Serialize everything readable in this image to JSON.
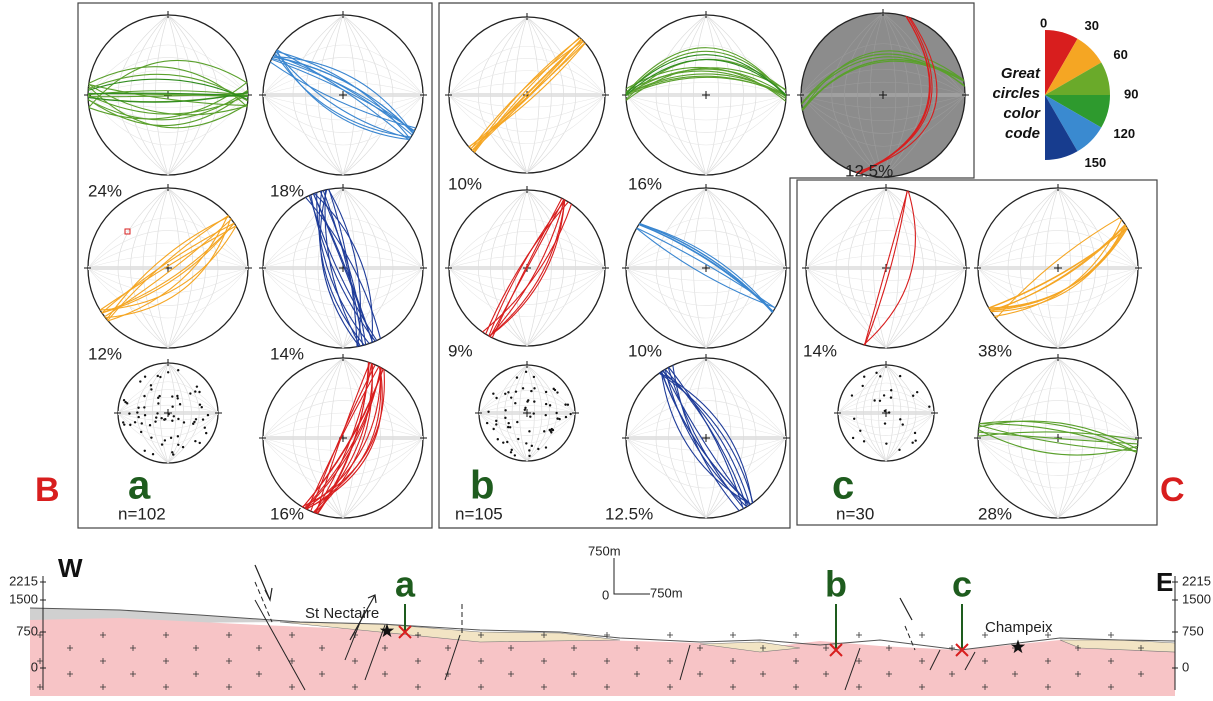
{
  "panels": [
    {
      "letter": "a",
      "n": "n=102",
      "nets": [
        "24%",
        "18%",
        "12%",
        "14%",
        "16%"
      ]
    },
    {
      "letter": "b",
      "n": "n=105",
      "nets": [
        "10%",
        "16%",
        "12.5%",
        "9%",
        "10%",
        "12.5%"
      ]
    },
    {
      "letter": "c",
      "n": "n=30",
      "nets": [
        "14%",
        "38%",
        "28%"
      ]
    }
  ],
  "legend": {
    "title": [
      "Great",
      "circles",
      "color",
      "code"
    ],
    "angles": [
      "0",
      "30",
      "60",
      "90",
      "120",
      "150"
    ]
  },
  "section": {
    "ends": [
      "B",
      "C"
    ],
    "directions": [
      "W",
      "E"
    ],
    "elevations": [
      2215,
      1500,
      750,
      0
    ],
    "scale": [
      "750m",
      "0",
      "750m"
    ],
    "places": [
      "St Nectaire",
      "Champeix"
    ],
    "sites": [
      "a",
      "b",
      "c"
    ]
  }
}
